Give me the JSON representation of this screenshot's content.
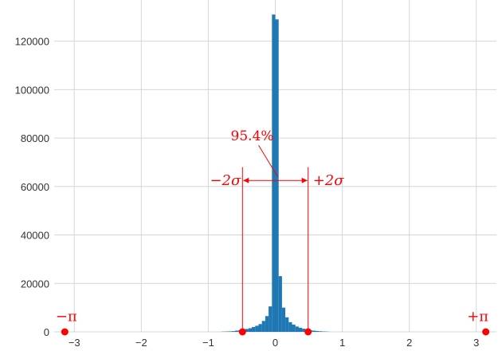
{
  "chart_data": {
    "type": "bar",
    "subtype": "histogram",
    "title": "",
    "xlabel": "",
    "ylabel": "",
    "xlim": [
      -3.3,
      3.3
    ],
    "ylim": [
      0,
      137000
    ],
    "xticks": [
      -3,
      -2,
      -1,
      0,
      1,
      2,
      3
    ],
    "xtick_labels": [
      "−3",
      "−2",
      "−1",
      "0",
      "1",
      "2",
      "3"
    ],
    "yticks": [
      0,
      20000,
      40000,
      60000,
      80000,
      100000,
      120000
    ],
    "ytick_labels": [
      "0",
      "20000",
      "40000",
      "60000",
      "80000",
      "100000",
      "120000"
    ],
    "grid": true,
    "bar_color": "#1f77b4",
    "bins": [
      {
        "x0": -0.8,
        "x1": -0.75,
        "value": 100
      },
      {
        "x0": -0.75,
        "x1": -0.7,
        "value": 150
      },
      {
        "x0": -0.7,
        "x1": -0.65,
        "value": 200
      },
      {
        "x0": -0.65,
        "x1": -0.6,
        "value": 300
      },
      {
        "x0": -0.6,
        "x1": -0.55,
        "value": 500
      },
      {
        "x0": -0.55,
        "x1": -0.5,
        "value": 700
      },
      {
        "x0": -0.5,
        "x1": -0.45,
        "value": 1000
      },
      {
        "x0": -0.45,
        "x1": -0.4,
        "value": 1200
      },
      {
        "x0": -0.4,
        "x1": -0.35,
        "value": 1500
      },
      {
        "x0": -0.35,
        "x1": -0.3,
        "value": 2000
      },
      {
        "x0": -0.3,
        "x1": -0.25,
        "value": 2500
      },
      {
        "x0": -0.25,
        "x1": -0.2,
        "value": 3200
      },
      {
        "x0": -0.2,
        "x1": -0.15,
        "value": 4500
      },
      {
        "x0": -0.15,
        "x1": -0.1,
        "value": 6500
      },
      {
        "x0": -0.1,
        "x1": -0.05,
        "value": 10500
      },
      {
        "x0": -0.05,
        "x1": 0.0,
        "value": 131000
      },
      {
        "x0": 0.0,
        "x1": 0.05,
        "value": 129000
      },
      {
        "x0": 0.05,
        "x1": 0.1,
        "value": 23000
      },
      {
        "x0": 0.1,
        "x1": 0.15,
        "value": 10000
      },
      {
        "x0": 0.15,
        "x1": 0.2,
        "value": 6000
      },
      {
        "x0": 0.2,
        "x1": 0.25,
        "value": 4000
      },
      {
        "x0": 0.25,
        "x1": 0.3,
        "value": 3000
      },
      {
        "x0": 0.3,
        "x1": 0.35,
        "value": 2200
      },
      {
        "x0": 0.35,
        "x1": 0.4,
        "value": 1700
      },
      {
        "x0": 0.4,
        "x1": 0.45,
        "value": 1300
      },
      {
        "x0": 0.45,
        "x1": 0.5,
        "value": 1000
      },
      {
        "x0": 0.5,
        "x1": 0.55,
        "value": 700
      },
      {
        "x0": 0.55,
        "x1": 0.6,
        "value": 500
      },
      {
        "x0": 0.6,
        "x1": 0.65,
        "value": 350
      },
      {
        "x0": 0.65,
        "x1": 0.7,
        "value": 250
      },
      {
        "x0": 0.7,
        "x1": 0.75,
        "value": 150
      },
      {
        "x0": 0.75,
        "x1": 0.8,
        "value": 100
      }
    ],
    "annotations": {
      "color": "#ff0000",
      "percent_label": "95.4%",
      "percent_label_pos": {
        "x": -0.13,
        "y": 79000
      },
      "pointer_end": {
        "x": -0.13,
        "y": 64000
      },
      "sigma_bounds": [
        -0.49,
        0.49
      ],
      "sigma_arrow_y": 62500,
      "sigma_line_top_y": 68000,
      "sigma_labels": {
        "left": "−2σ",
        "right": "+2σ"
      },
      "sigma_label_y": 62500,
      "pi_points": [
        -3.1416,
        3.1416
      ],
      "pi_labels": {
        "left": "−π",
        "right": "+π"
      },
      "pi_label_y": 4500
    }
  }
}
